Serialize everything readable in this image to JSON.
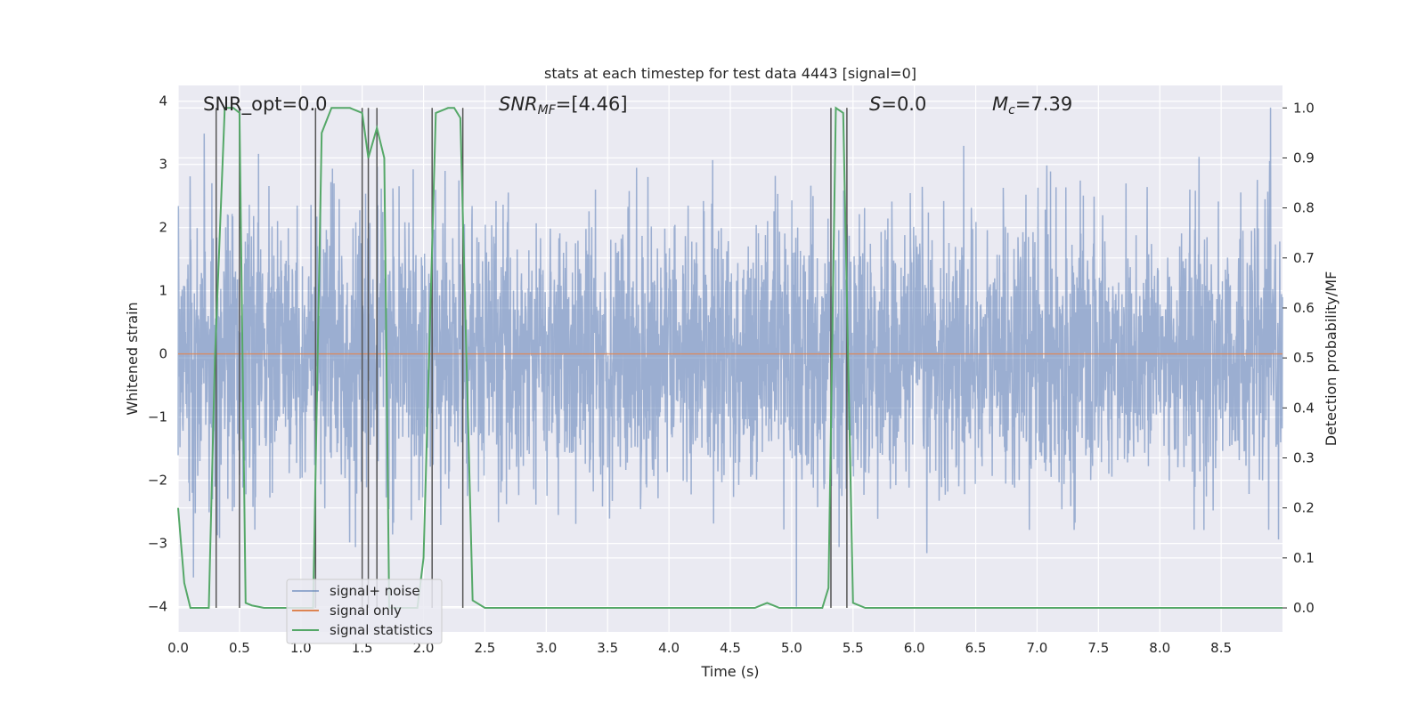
{
  "chart_data": {
    "type": "line",
    "title": "stats at each timestep for test data 4443 [signal=0]",
    "xlabel": "Time (s)",
    "ylabel_left": "Whitened strain",
    "ylabel_right": "Detection probability/MF",
    "xlim": [
      0.0,
      9.0
    ],
    "ylim_left": [
      -4.4,
      4.25
    ],
    "ylim_right": [
      -0.048,
      1.045
    ],
    "x_ticks": [
      0.0,
      0.5,
      1.0,
      1.5,
      2.0,
      2.5,
      3.0,
      3.5,
      4.0,
      4.5,
      5.0,
      5.5,
      6.0,
      6.5,
      7.0,
      7.5,
      8.0,
      8.5
    ],
    "x_tick_labels": [
      "0.0",
      "0.5",
      "1.0",
      "1.5",
      "2.0",
      "2.5",
      "3.0",
      "3.5",
      "4.0",
      "4.5",
      "5.0",
      "5.5",
      "6.0",
      "6.5",
      "7.0",
      "7.5",
      "8.0",
      "8.5"
    ],
    "y_left_ticks": [
      4,
      3,
      2,
      1,
      0,
      -1,
      -2,
      -3,
      -4
    ],
    "y_left_tick_labels": [
      "4",
      "3",
      "2",
      "1",
      "0",
      "−1",
      "−2",
      "−3",
      "−4"
    ],
    "y_right_ticks": [
      1.0,
      0.9,
      0.8,
      0.7,
      0.6,
      0.5,
      0.4,
      0.3,
      0.2,
      0.1,
      0.0
    ],
    "y_right_tick_labels": [
      "1.0",
      "0.9",
      "0.8",
      "0.7",
      "0.6",
      "0.5",
      "0.4",
      "0.3",
      "0.2",
      "0.1",
      "0.0"
    ],
    "grid": true,
    "legend_position": "lower-left",
    "annotations": {
      "snr_opt": "SNR_opt=0.0",
      "snr_mf_main": "SNR",
      "snr_mf_sub": "MF",
      "snr_mf_value": "=[4.46]",
      "s_label": "S",
      "s_value": "=0.0",
      "mc_main": "M",
      "mc_sub": "c",
      "mc_value": "=7.39"
    },
    "series": [
      {
        "name": "signal+ noise",
        "axis": "left",
        "color": "#4c72b0",
        "description": "whitened noise strain, approx. amplitude ±2 to ±4",
        "amplitude_range": [
          -4.0,
          3.9
        ]
      },
      {
        "name": "signal only",
        "axis": "left",
        "color": "#dd8452",
        "values_constant": 0.0
      },
      {
        "name": "signal statistics",
        "axis": "right",
        "color": "#55a868",
        "x": [
          0.0,
          0.05,
          0.1,
          0.2,
          0.25,
          0.3,
          0.38,
          0.45,
          0.5,
          0.55,
          0.6,
          0.7,
          0.8,
          1.0,
          1.1,
          1.17,
          1.25,
          1.4,
          1.5,
          1.55,
          1.62,
          1.68,
          1.72,
          1.8,
          1.95,
          2.0,
          2.1,
          2.2,
          2.25,
          2.3,
          2.4,
          2.5,
          3.0,
          4.0,
          4.7,
          4.75,
          4.8,
          4.85,
          4.9,
          5.0,
          5.25,
          5.3,
          5.36,
          5.42,
          5.5,
          5.6,
          6.0,
          7.0,
          8.0,
          9.0
        ],
        "values": [
          0.2,
          0.05,
          0.0,
          0.0,
          0.0,
          0.5,
          1.0,
          1.0,
          0.99,
          0.01,
          0.005,
          0.0,
          0.0,
          0.0,
          0.0,
          0.95,
          1.0,
          1.0,
          0.99,
          0.9,
          0.96,
          0.9,
          0.0,
          0.0,
          0.0,
          0.1,
          0.99,
          1.0,
          1.0,
          0.98,
          0.015,
          0.0,
          0.0,
          0.0,
          0.0,
          0.005,
          0.01,
          0.005,
          0.0,
          0.0,
          0.0,
          0.04,
          1.0,
          0.99,
          0.01,
          0.0,
          0.0,
          0.0,
          0.0,
          0.0
        ]
      }
    ],
    "vertical_markers": {
      "color": "#555555",
      "x": [
        0.31,
        0.5,
        1.12,
        1.5,
        1.55,
        1.62,
        2.07,
        2.32,
        5.32,
        5.45
      ]
    }
  }
}
